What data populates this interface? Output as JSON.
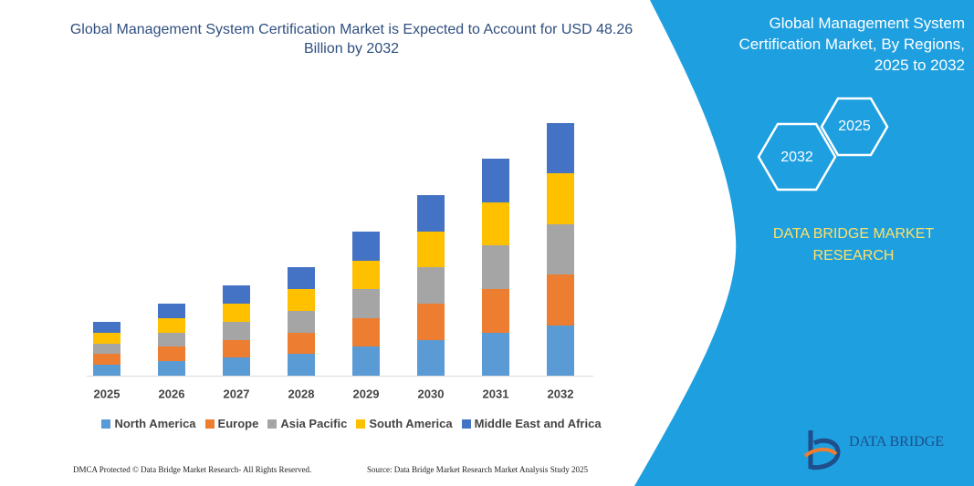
{
  "chart_data": {
    "type": "stacked_bar",
    "title": "Global Management System Certification Market is Expected to Account for USD 48.26 Billion by 2032",
    "categories": [
      "2025",
      "2026",
      "2027",
      "2028",
      "2029",
      "2030",
      "2031",
      "2032"
    ],
    "series": [
      {
        "name": "North America",
        "color": "#5b9bd5",
        "values": [
          12,
          16,
          20,
          24,
          32,
          39,
          47,
          55
        ]
      },
      {
        "name": "Europe",
        "color": "#ed7d31",
        "values": [
          12,
          16,
          19,
          23,
          31,
          40,
          48,
          56
        ]
      },
      {
        "name": "Asia Pacific",
        "color": "#a5a5a5",
        "values": [
          11,
          15,
          20,
          24,
          32,
          40,
          48,
          55
        ]
      },
      {
        "name": "South America",
        "color": "#ffc000",
        "values": [
          12,
          16,
          20,
          24,
          31,
          39,
          47,
          56
        ]
      },
      {
        "name": "Middle East and Africa",
        "color": "#4472c4",
        "values": [
          12,
          16,
          20,
          24,
          32,
          40,
          48,
          55
        ]
      }
    ],
    "ylim": [
      0,
      300
    ]
  },
  "panel": {
    "title": "Global Management System Certification Market, By Regions, 2025 to 2032",
    "hex_labels": [
      "2032",
      "2025"
    ],
    "brand": "DATA BRIDGE MARKET RESEARCH"
  },
  "logo": "DATA BRIDGE",
  "footer": {
    "left": "DMCA Protected © Data Bridge Market Research-  All Rights Reserved.",
    "right": "Source: Data Bridge Market Research  Market Analysis Study 2025"
  }
}
